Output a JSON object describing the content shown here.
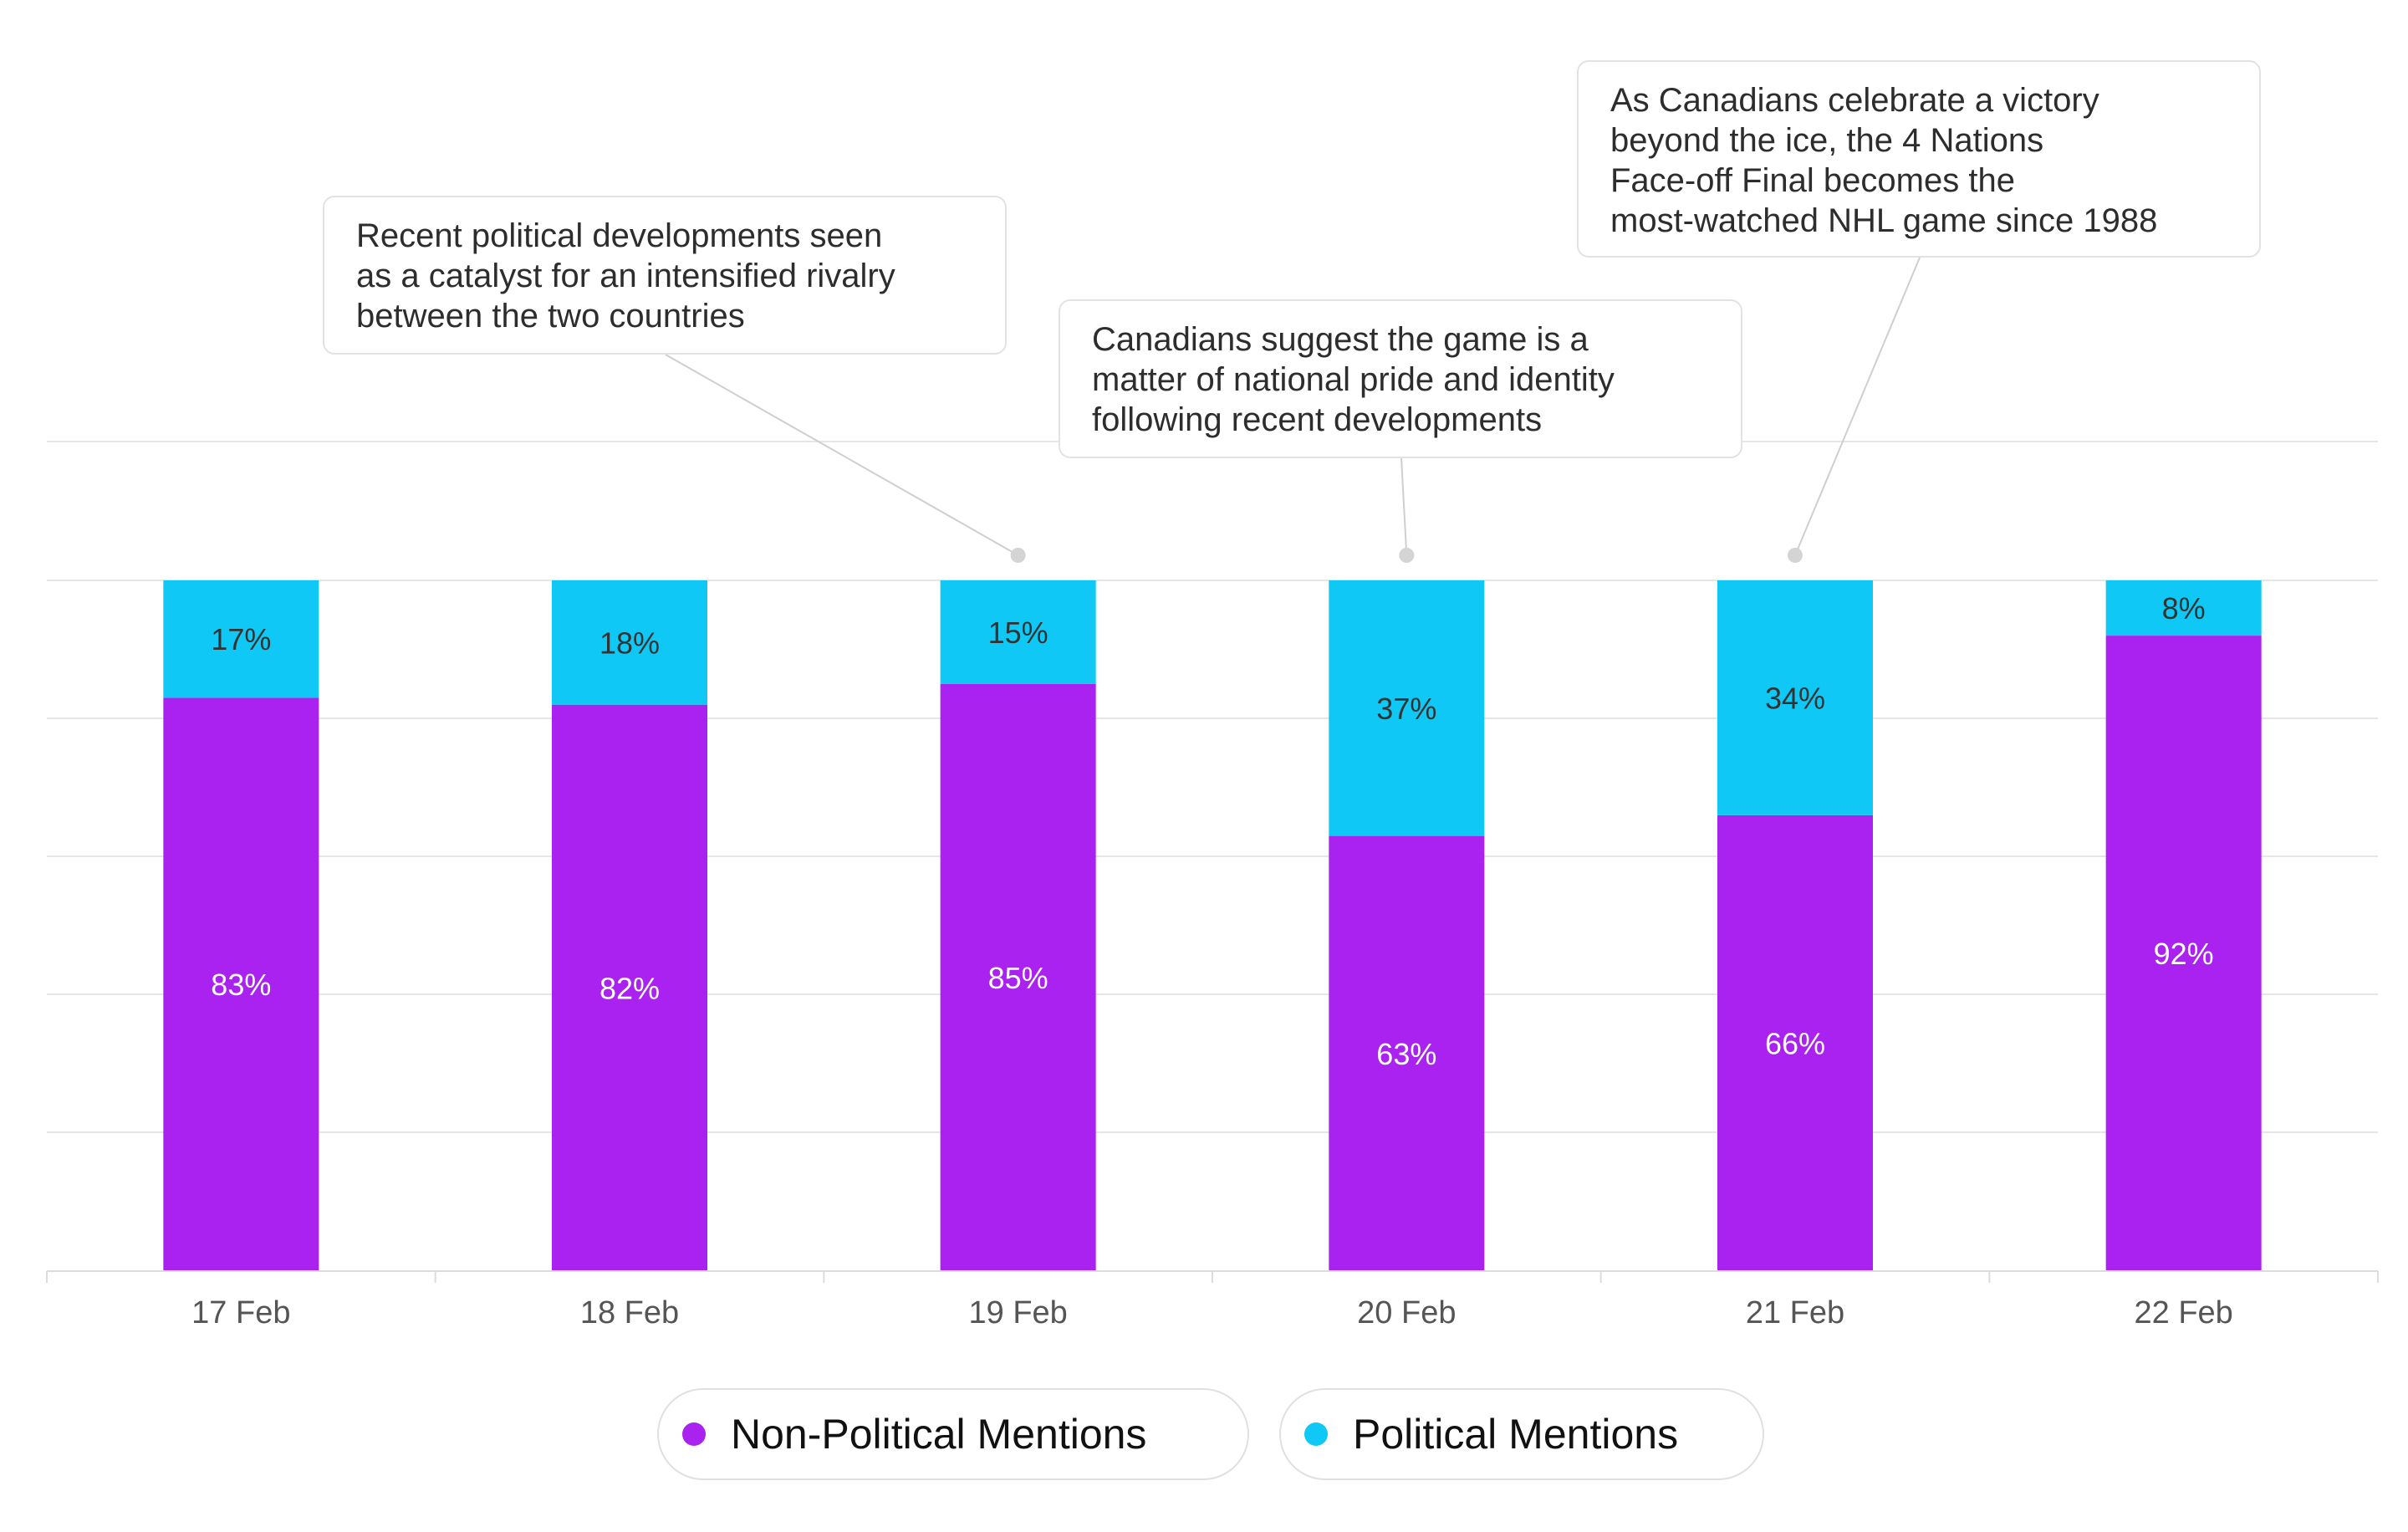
{
  "chart_data": {
    "type": "bar",
    "stacked": true,
    "categories": [
      "17 Feb",
      "18 Feb",
      "19 Feb",
      "20 Feb",
      "21 Feb",
      "22 Feb"
    ],
    "series": [
      {
        "name": "Non-Political Mentions",
        "color": "#a922f0",
        "values": [
          83,
          82,
          85,
          63,
          66,
          92
        ]
      },
      {
        "name": "Political Mentions",
        "color": "#0fc8f5",
        "values": [
          17,
          18,
          15,
          37,
          34,
          8
        ]
      }
    ],
    "data_labels": {
      "Non-Political Mentions": [
        "83%",
        "82%",
        "85%",
        "63%",
        "66%",
        "92%"
      ],
      "Political Mentions": [
        "17%",
        "18%",
        "15%",
        "37%",
        "34%",
        "8%"
      ]
    },
    "ylim": [
      0,
      100
    ],
    "grid": true,
    "legend_position": "bottom-center",
    "annotations": [
      {
        "category": "19 Feb",
        "text": "Recent political developments seen\nas a catalyst for an intensified rivalry\nbetween the two countries"
      },
      {
        "category": "20 Feb",
        "text": "Canadians suggest the game is a\nmatter of national pride and identity\nfollowing recent developments"
      },
      {
        "category": "21 Feb",
        "text": "As Canadians celebrate a victory\nbeyond the ice, the 4 Nations\nFace-off Final becomes the\nmost-watched NHL game since 1988"
      }
    ]
  },
  "legend": {
    "items": [
      {
        "label": "Non-Political Mentions",
        "color": "#a922f0"
      },
      {
        "label": "Political Mentions",
        "color": "#0fc8f5"
      }
    ]
  }
}
